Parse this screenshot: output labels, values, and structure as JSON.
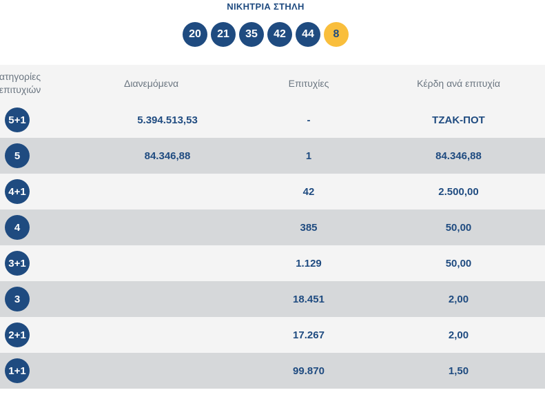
{
  "header": {
    "title": "ΝΙΚΗΤΡΙΑ ΣΤΗΛΗ",
    "numbers": [
      "20",
      "21",
      "35",
      "42",
      "44"
    ],
    "bonus": "8"
  },
  "table": {
    "columns": {
      "category_line1": "ατηγορίες",
      "category_line2": "επιτυχιών",
      "pool": "Διανεμόμενα",
      "winners": "Επιτυχίες",
      "prize": "Κέρδη ανά επιτυχία"
    },
    "rows": [
      {
        "category": "5+1",
        "pool": "5.394.513,53",
        "winners": "-",
        "prize": "ΤΖΑΚ-ΠΟΤ"
      },
      {
        "category": "5",
        "pool": "84.346,88",
        "winners": "1",
        "prize": "84.346,88"
      },
      {
        "category": "4+1",
        "pool": "",
        "winners": "42",
        "prize": "2.500,00"
      },
      {
        "category": "4",
        "pool": "",
        "winners": "385",
        "prize": "50,00"
      },
      {
        "category": "3+1",
        "pool": "",
        "winners": "1.129",
        "prize": "50,00"
      },
      {
        "category": "3",
        "pool": "",
        "winners": "18.451",
        "prize": "2,00"
      },
      {
        "category": "2+1",
        "pool": "",
        "winners": "17.267",
        "prize": "2,00"
      },
      {
        "category": "1+1",
        "pool": "",
        "winners": "99.870",
        "prize": "1,50"
      }
    ]
  },
  "colors": {
    "primary": "#1f4b80",
    "bonus": "#f9be3c",
    "row_light": "#f4f4f4",
    "row_dark": "#d6d8da"
  }
}
